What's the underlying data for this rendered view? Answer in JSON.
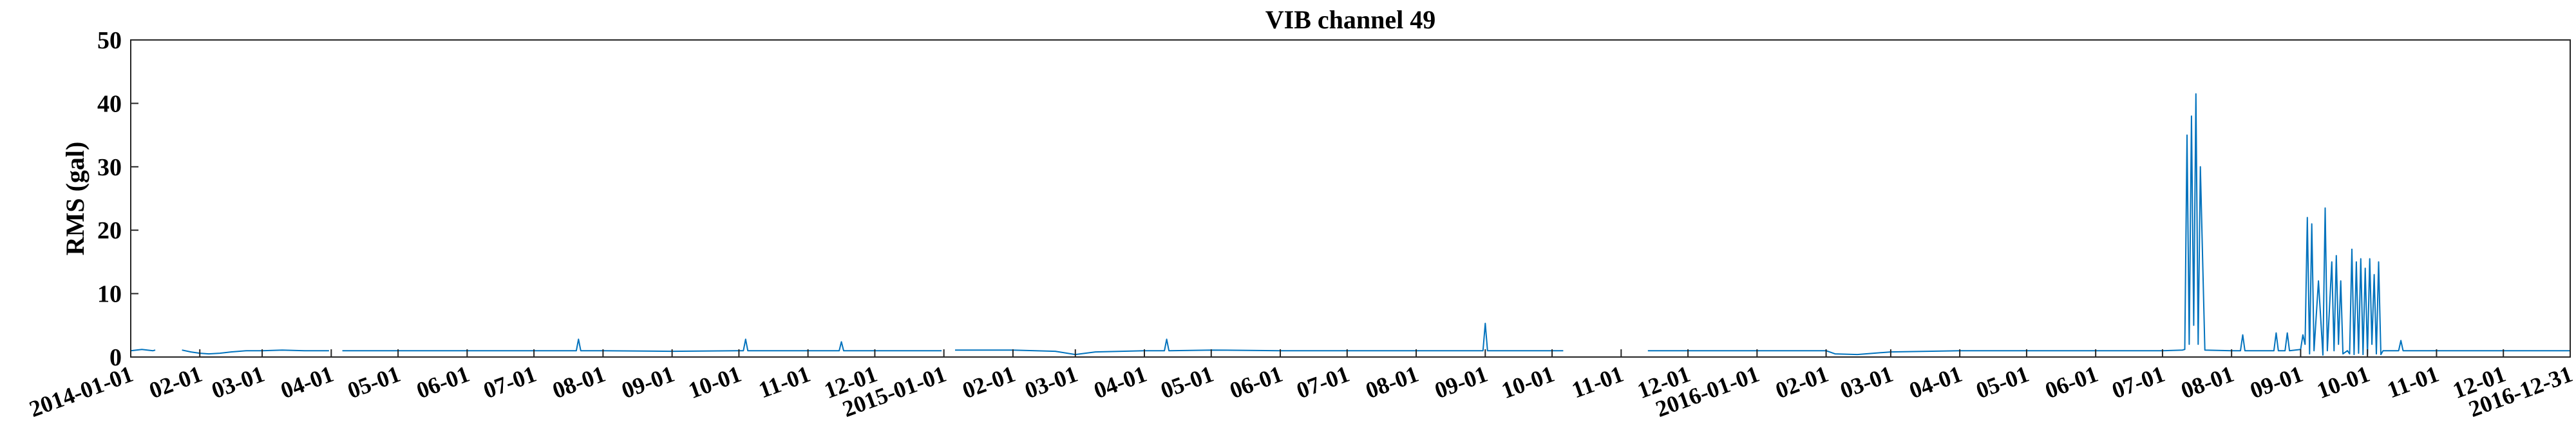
{
  "chart_data": {
    "type": "line",
    "title": "VIB channel 49",
    "xlabel": "",
    "ylabel": "RMS (gal)",
    "ylim": [
      0,
      50
    ],
    "yticks": [
      0,
      10,
      20,
      30,
      40,
      50
    ],
    "xlim": [
      "2014-01-01",
      "2016-12-31"
    ],
    "grid": false,
    "color": "#0072BD",
    "xticks": [
      "2014-01-01",
      "02-01",
      "03-01",
      "04-01",
      "05-01",
      "06-01",
      "07-01",
      "08-01",
      "09-01",
      "10-01",
      "11-01",
      "12-01",
      "2015-01-01",
      "02-01",
      "03-01",
      "04-01",
      "05-01",
      "06-01",
      "07-01",
      "08-01",
      "09-01",
      "10-01",
      "11-01",
      "12-01",
      "2016-01-01",
      "02-01",
      "03-01",
      "04-01",
      "05-01",
      "06-01",
      "07-01",
      "08-01",
      "09-01",
      "10-01",
      "11-01",
      "12-01",
      "2016-12-31"
    ],
    "series": [
      {
        "segments": [
          {
            "x": [
              "2014-01-01",
              "2014-01-06",
              "2014-01-11",
              "2014-01-12"
            ],
            "y": [
              1.0,
              1.2,
              1.0,
              1.1
            ]
          },
          {
            "x": [
              "2014-01-24",
              "2014-01-28",
              "2014-02-01",
              "2014-02-05",
              "2014-02-10",
              "2014-02-15",
              "2014-02-22",
              "2014-03-01",
              "2014-03-10",
              "2014-03-20",
              "2014-03-31"
            ],
            "y": [
              1.1,
              0.8,
              0.6,
              0.5,
              0.6,
              0.8,
              1.0,
              1.0,
              1.1,
              1.0,
              1.0
            ]
          },
          {
            "x": [
              "2014-04-06",
              "2014-05-01",
              "2014-06-01",
              "2014-07-01",
              "2014-07-20",
              "2014-07-21",
              "2014-07-22",
              "2014-08-01",
              "2014-09-01",
              "2014-10-01",
              "2014-10-03",
              "2014-10-04",
              "2014-10-05",
              "2014-11-01",
              "2014-11-15",
              "2014-11-16",
              "2014-11-17",
              "2014-12-01",
              "2014-12-31"
            ],
            "y": [
              1.0,
              1.0,
              1.0,
              1.0,
              1.0,
              2.8,
              1.0,
              1.0,
              0.9,
              1.0,
              1.0,
              2.8,
              1.0,
              1.0,
              1.0,
              2.4,
              1.0,
              1.0,
              1.0
            ]
          },
          {
            "x": [
              "2015-01-06",
              "2015-02-01",
              "2015-02-20",
              "2015-03-01",
              "2015-03-10",
              "2015-04-01",
              "2015-04-10",
              "2015-04-11",
              "2015-04-12",
              "2015-05-01",
              "2015-06-01",
              "2015-07-01",
              "2015-08-01",
              "2015-08-31",
              "2015-09-01",
              "2015-09-02",
              "2015-10-01",
              "2015-10-06"
            ],
            "y": [
              1.1,
              1.1,
              0.9,
              0.4,
              0.8,
              1.0,
              1.0,
              2.8,
              1.0,
              1.1,
              1.0,
              1.0,
              1.0,
              1.0,
              5.3,
              1.0,
              1.0,
              1.0
            ]
          },
          {
            "x": [
              "2015-11-13",
              "2015-12-01",
              "2016-01-01",
              "2016-02-01",
              "2016-02-05",
              "2016-02-15",
              "2016-03-01",
              "2016-04-01",
              "2016-05-01",
              "2016-06-01",
              "2016-07-01",
              "2016-07-10",
              "2016-07-11",
              "2016-07-12",
              "2016-07-13",
              "2016-07-14",
              "2016-07-15",
              "2016-07-16",
              "2016-07-17",
              "2016-07-18",
              "2016-07-20",
              "2016-08-01",
              "2016-08-05",
              "2016-08-06",
              "2016-08-07",
              "2016-08-20",
              "2016-08-21",
              "2016-08-22",
              "2016-08-25",
              "2016-08-26",
              "2016-08-27",
              "2016-09-01",
              "2016-09-02",
              "2016-09-03",
              "2016-09-04",
              "2016-09-05",
              "2016-09-06",
              "2016-09-07",
              "2016-09-09",
              "2016-09-11",
              "2016-09-12",
              "2016-09-13",
              "2016-09-15",
              "2016-09-16",
              "2016-09-17",
              "2016-09-18",
              "2016-09-19",
              "2016-09-20",
              "2016-09-22",
              "2016-09-23",
              "2016-09-24",
              "2016-09-25",
              "2016-09-26",
              "2016-09-27",
              "2016-09-28",
              "2016-09-29",
              "2016-09-30",
              "2016-10-01",
              "2016-10-02",
              "2016-10-03",
              "2016-10-04",
              "2016-10-05",
              "2016-10-06",
              "2016-10-07",
              "2016-10-08",
              "2016-10-10",
              "2016-10-12",
              "2016-10-15",
              "2016-10-16",
              "2016-10-17",
              "2016-10-20",
              "2016-11-01",
              "2016-12-01",
              "2016-12-31"
            ],
            "y": [
              1.0,
              1.0,
              1.0,
              1.0,
              0.5,
              0.4,
              0.8,
              1.0,
              1.0,
              1.0,
              1.0,
              1.1,
              1.2,
              35,
              2,
              38,
              5,
              41.5,
              2,
              30,
              1.1,
              1.0,
              1.0,
              3.5,
              1.0,
              1.0,
              3.8,
              1.0,
              1.0,
              3.8,
              1.0,
              1.2,
              3.5,
              2.0,
              22,
              0.5,
              21,
              1.0,
              12,
              0.3,
              23.5,
              1.0,
              15,
              1.0,
              16,
              2.0,
              12,
              0.5,
              1.0,
              0.5,
              17,
              0.4,
              15,
              0.6,
              15.5,
              0.4,
              14,
              0.4,
              15.5,
              2.0,
              13,
              0.5,
              15,
              0.4,
              1.0,
              1.0,
              1.0,
              1.0,
              2.6,
              1.0,
              1.0,
              1.0,
              1.0,
              1.0
            ]
          }
        ]
      }
    ]
  }
}
